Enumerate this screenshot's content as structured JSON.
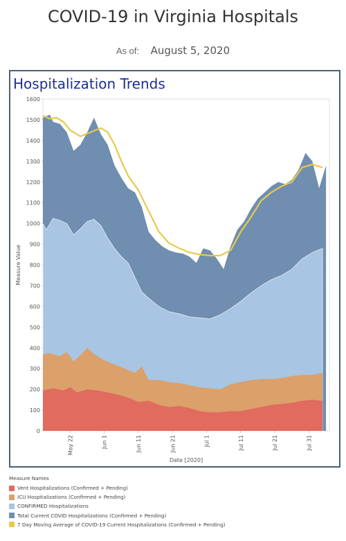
{
  "header": {
    "title": "COVID-19 in Virginia Hospitals",
    "asof_label": "As of:",
    "asof_date": "August 5, 2020"
  },
  "panel": {
    "title": "Hospitalization Trends"
  },
  "colors": {
    "vent": "#e06b5e",
    "icu": "#dca06a",
    "confirmed": "#a8c5e3",
    "total": "#6f8eb0",
    "avg": "#e7c94e"
  },
  "chart_data": {
    "type": "area",
    "xlabel": "Date [2020]",
    "ylabel": "Measure Value",
    "ylim": [
      0,
      1600
    ],
    "yticks": [
      0,
      100,
      200,
      300,
      400,
      500,
      600,
      700,
      800,
      900,
      1000,
      1100,
      1200,
      1300,
      1400,
      1500,
      1600
    ],
    "xlim": [
      "2020-05-14",
      "2020-08-06"
    ],
    "xticks": [
      {
        "date": "2020-05-22",
        "label": "May 22"
      },
      {
        "date": "2020-06-01",
        "label": "Jun 1"
      },
      {
        "date": "2020-06-11",
        "label": "Jun 11"
      },
      {
        "date": "2020-06-21",
        "label": "Jun 21"
      },
      {
        "date": "2020-07-01",
        "label": "Jul 1"
      },
      {
        "date": "2020-07-11",
        "label": "Jul 11"
      },
      {
        "date": "2020-07-21",
        "label": "Jul 21"
      },
      {
        "date": "2020-07-31",
        "label": "Jul 31"
      }
    ],
    "legend_title": "Measure Names",
    "legend_placement": "bottom",
    "series": [
      {
        "name": "Vent Hospitalizations (Confirmed + Pending)",
        "color_key": "vent",
        "points": [
          [
            "2020-05-14",
            195
          ],
          [
            "2020-05-17",
            205
          ],
          [
            "2020-05-20",
            195
          ],
          [
            "2020-05-22",
            210
          ],
          [
            "2020-05-24",
            185
          ],
          [
            "2020-05-27",
            200
          ],
          [
            "2020-05-30",
            195
          ],
          [
            "2020-06-02",
            185
          ],
          [
            "2020-06-05",
            175
          ],
          [
            "2020-06-08",
            160
          ],
          [
            "2020-06-11",
            140
          ],
          [
            "2020-06-14",
            145
          ],
          [
            "2020-06-17",
            125
          ],
          [
            "2020-06-20",
            115
          ],
          [
            "2020-06-23",
            120
          ],
          [
            "2020-06-26",
            110
          ],
          [
            "2020-06-29",
            95
          ],
          [
            "2020-07-02",
            90
          ],
          [
            "2020-07-05",
            90
          ],
          [
            "2020-07-08",
            95
          ],
          [
            "2020-07-11",
            95
          ],
          [
            "2020-07-14",
            105
          ],
          [
            "2020-07-17",
            115
          ],
          [
            "2020-07-20",
            125
          ],
          [
            "2020-07-23",
            130
          ],
          [
            "2020-07-26",
            135
          ],
          [
            "2020-07-29",
            145
          ],
          [
            "2020-08-01",
            150
          ],
          [
            "2020-08-04",
            145
          ]
        ]
      },
      {
        "name": "ICU Hospitalizations (Confirmed + Pending)",
        "color_key": "icu",
        "points": [
          [
            "2020-05-14",
            370
          ],
          [
            "2020-05-16",
            375
          ],
          [
            "2020-05-19",
            360
          ],
          [
            "2020-05-21",
            380
          ],
          [
            "2020-05-23",
            335
          ],
          [
            "2020-05-25",
            365
          ],
          [
            "2020-05-27",
            400
          ],
          [
            "2020-05-29",
            370
          ],
          [
            "2020-06-01",
            340
          ],
          [
            "2020-06-04",
            320
          ],
          [
            "2020-06-07",
            300
          ],
          [
            "2020-06-10",
            280
          ],
          [
            "2020-06-12",
            310
          ],
          [
            "2020-06-14",
            245
          ],
          [
            "2020-06-17",
            245
          ],
          [
            "2020-06-20",
            235
          ],
          [
            "2020-06-23",
            230
          ],
          [
            "2020-06-26",
            220
          ],
          [
            "2020-06-29",
            210
          ],
          [
            "2020-07-02",
            205
          ],
          [
            "2020-07-05",
            200
          ],
          [
            "2020-07-08",
            225
          ],
          [
            "2020-07-11",
            235
          ],
          [
            "2020-07-14",
            245
          ],
          [
            "2020-07-17",
            250
          ],
          [
            "2020-07-20",
            250
          ],
          [
            "2020-07-23",
            255
          ],
          [
            "2020-07-26",
            265
          ],
          [
            "2020-07-29",
            270
          ],
          [
            "2020-08-01",
            270
          ],
          [
            "2020-08-04",
            280
          ]
        ]
      },
      {
        "name": "CONFIRMED Hospitalizations",
        "color_key": "confirmed",
        "points": [
          [
            "2020-05-14",
            1000
          ],
          [
            "2020-05-15",
            970
          ],
          [
            "2020-05-17",
            1025
          ],
          [
            "2020-05-19",
            1015
          ],
          [
            "2020-05-21",
            1000
          ],
          [
            "2020-05-23",
            945
          ],
          [
            "2020-05-25",
            975
          ],
          [
            "2020-05-27",
            1010
          ],
          [
            "2020-05-29",
            1020
          ],
          [
            "2020-05-31",
            990
          ],
          [
            "2020-06-02",
            930
          ],
          [
            "2020-06-04",
            880
          ],
          [
            "2020-06-06",
            840
          ],
          [
            "2020-06-08",
            810
          ],
          [
            "2020-06-10",
            740
          ],
          [
            "2020-06-12",
            670
          ],
          [
            "2020-06-14",
            640
          ],
          [
            "2020-06-17",
            600
          ],
          [
            "2020-06-20",
            575
          ],
          [
            "2020-06-23",
            565
          ],
          [
            "2020-06-26",
            550
          ],
          [
            "2020-06-29",
            545
          ],
          [
            "2020-07-02",
            540
          ],
          [
            "2020-07-05",
            560
          ],
          [
            "2020-07-08",
            590
          ],
          [
            "2020-07-11",
            625
          ],
          [
            "2020-07-14",
            665
          ],
          [
            "2020-07-17",
            700
          ],
          [
            "2020-07-20",
            730
          ],
          [
            "2020-07-23",
            750
          ],
          [
            "2020-07-26",
            780
          ],
          [
            "2020-07-29",
            830
          ],
          [
            "2020-08-01",
            860
          ],
          [
            "2020-08-04",
            880
          ]
        ]
      },
      {
        "name": "Total Current COVID Hospitalizations (Confirmed + Pending)",
        "color_key": "total",
        "points": [
          [
            "2020-05-14",
            1510
          ],
          [
            "2020-05-16",
            1525
          ],
          [
            "2020-05-17",
            1490
          ],
          [
            "2020-05-19",
            1480
          ],
          [
            "2020-05-21",
            1440
          ],
          [
            "2020-05-23",
            1350
          ],
          [
            "2020-05-25",
            1380
          ],
          [
            "2020-05-27",
            1440
          ],
          [
            "2020-05-29",
            1510
          ],
          [
            "2020-05-31",
            1430
          ],
          [
            "2020-06-02",
            1380
          ],
          [
            "2020-06-04",
            1280
          ],
          [
            "2020-06-06",
            1220
          ],
          [
            "2020-06-08",
            1170
          ],
          [
            "2020-06-10",
            1150
          ],
          [
            "2020-06-12",
            1080
          ],
          [
            "2020-06-14",
            960
          ],
          [
            "2020-06-16",
            920
          ],
          [
            "2020-06-18",
            890
          ],
          [
            "2020-06-20",
            870
          ],
          [
            "2020-06-22",
            860
          ],
          [
            "2020-06-24",
            855
          ],
          [
            "2020-06-26",
            840
          ],
          [
            "2020-06-28",
            810
          ],
          [
            "2020-06-30",
            880
          ],
          [
            "2020-07-02",
            870
          ],
          [
            "2020-07-04",
            830
          ],
          [
            "2020-07-06",
            780
          ],
          [
            "2020-07-08",
            890
          ],
          [
            "2020-07-10",
            970
          ],
          [
            "2020-07-12",
            1010
          ],
          [
            "2020-07-14",
            1070
          ],
          [
            "2020-07-16",
            1120
          ],
          [
            "2020-07-18",
            1150
          ],
          [
            "2020-07-20",
            1180
          ],
          [
            "2020-07-22",
            1200
          ],
          [
            "2020-07-24",
            1190
          ],
          [
            "2020-07-26",
            1210
          ],
          [
            "2020-07-28",
            1260
          ],
          [
            "2020-07-30",
            1340
          ],
          [
            "2020-08-01",
            1300
          ],
          [
            "2020-08-03",
            1170
          ],
          [
            "2020-08-05",
            1280
          ]
        ]
      },
      {
        "name": "7 Day Moving Average of COVID-19 Current Hospitalizations (Confirmed + Pending)",
        "color_key": "avg",
        "points": [
          [
            "2020-05-14",
            1520
          ],
          [
            "2020-05-16",
            1505
          ],
          [
            "2020-05-18",
            1510
          ],
          [
            "2020-05-20",
            1490
          ],
          [
            "2020-05-22",
            1450
          ],
          [
            "2020-05-25",
            1420
          ],
          [
            "2020-05-28",
            1440
          ],
          [
            "2020-05-31",
            1460
          ],
          [
            "2020-06-02",
            1440
          ],
          [
            "2020-06-04",
            1380
          ],
          [
            "2020-06-06",
            1300
          ],
          [
            "2020-06-08",
            1230
          ],
          [
            "2020-06-11",
            1160
          ],
          [
            "2020-06-14",
            1060
          ],
          [
            "2020-06-17",
            960
          ],
          [
            "2020-06-20",
            905
          ],
          [
            "2020-06-23",
            880
          ],
          [
            "2020-06-26",
            860
          ],
          [
            "2020-06-29",
            850
          ],
          [
            "2020-07-02",
            845
          ],
          [
            "2020-07-05",
            845
          ],
          [
            "2020-07-08",
            870
          ],
          [
            "2020-07-11",
            960
          ],
          [
            "2020-07-14",
            1030
          ],
          [
            "2020-07-17",
            1110
          ],
          [
            "2020-07-20",
            1150
          ],
          [
            "2020-07-23",
            1180
          ],
          [
            "2020-07-26",
            1200
          ],
          [
            "2020-07-29",
            1270
          ],
          [
            "2020-08-01",
            1285
          ],
          [
            "2020-08-04",
            1270
          ]
        ]
      }
    ]
  }
}
